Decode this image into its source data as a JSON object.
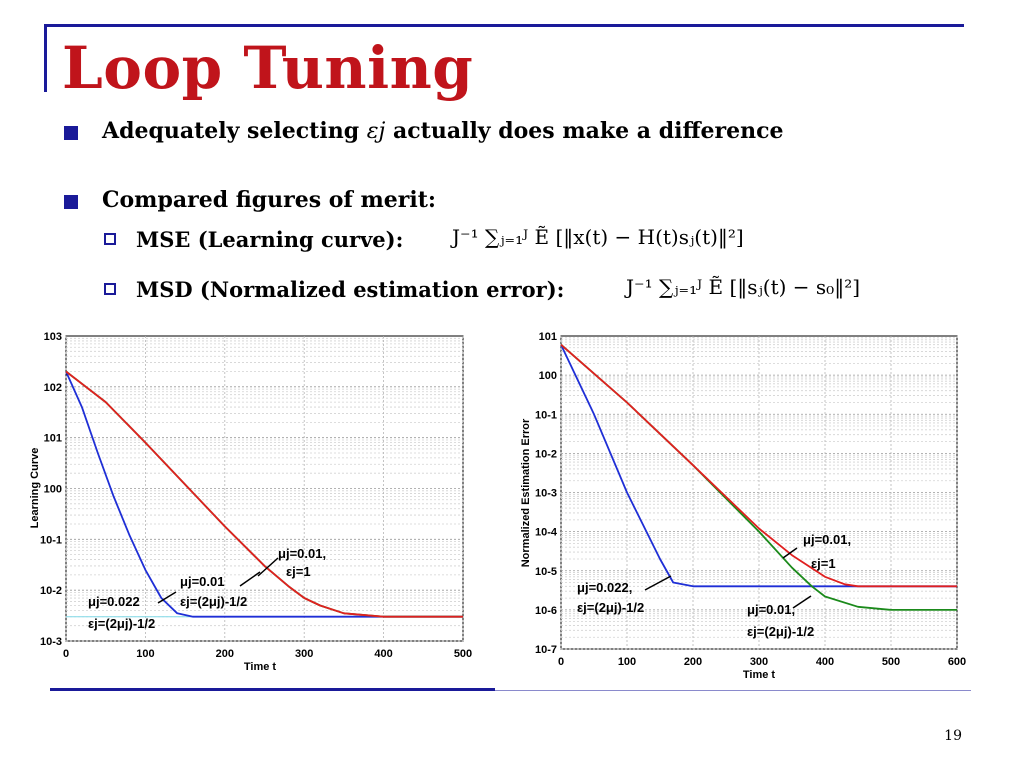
{
  "slide": {
    "title": "Loop Tuning",
    "page_number": "19",
    "bullets": [
      {
        "pre": "Adequately selecting ",
        "math": "εj",
        "post": " actually does make a difference"
      },
      {
        "text": "Compared figures of merit:"
      }
    ],
    "sub_bullets": [
      {
        "label": "MSE (Learning curve):",
        "formula": "J⁻¹ ∑ⱼ₌₁ᴶ Ẽ [‖x(t) − H(t)sⱼ(t)‖²]"
      },
      {
        "label": "MSD (Normalized estimation error):",
        "formula": "J⁻¹ ∑ⱼ₌₁ᴶ Ẽ [‖sⱼ(t) − s₀‖²]"
      }
    ],
    "colors": {
      "title": "#c0141b",
      "accent": "#1a1a99",
      "blue": "#1f2fd6",
      "red": "#e02020",
      "green": "#1b8a1b",
      "cyan": "#7fd8e6"
    }
  },
  "chart_data": [
    {
      "type": "line",
      "xlabel": "Time t",
      "ylabel": "Learning Curve",
      "xlim": [
        0,
        500
      ],
      "ylim": [
        0.001,
        1000
      ],
      "log_y": true,
      "grid": true,
      "x_ticks": [
        "0",
        "100",
        "200",
        "300",
        "400",
        "500"
      ],
      "y_ticks": [
        "10-3",
        "10-2",
        "10-1",
        "100",
        "101",
        "102",
        "103"
      ],
      "series": [
        {
          "color": "blue",
          "x": [
            0,
            20,
            40,
            60,
            80,
            100,
            120,
            140,
            160,
            180,
            200,
            300,
            400,
            500
          ],
          "y": [
            200,
            40,
            5,
            0.7,
            0.12,
            0.025,
            0.007,
            0.0035,
            0.003,
            0.003,
            0.003,
            0.003,
            0.003,
            0.003
          ]
        },
        {
          "color": "green",
          "x": [
            0,
            50,
            100,
            150,
            200,
            250,
            280,
            300,
            320,
            350,
            400,
            450,
            500
          ],
          "y": [
            200,
            50,
            8,
            1.2,
            0.18,
            0.03,
            0.012,
            0.007,
            0.005,
            0.0035,
            0.003,
            0.003,
            0.003
          ]
        },
        {
          "color": "red",
          "x": [
            0,
            50,
            100,
            150,
            200,
            250,
            280,
            300,
            320,
            350,
            400,
            450,
            500
          ],
          "y": [
            200,
            50,
            8,
            1.2,
            0.18,
            0.03,
            0.012,
            0.007,
            0.005,
            0.0035,
            0.003,
            0.003,
            0.003
          ]
        }
      ],
      "annotations": [
        "μj=0.01,",
        "εj=1",
        "μj=0.01",
        "εj=(2μj)-1/2",
        "μj=0.022",
        "εj=(2μj)-1/2"
      ]
    },
    {
      "type": "line",
      "xlabel": "Time t",
      "ylabel": "Normalized Estimation Error",
      "xlim": [
        0,
        600
      ],
      "ylim": [
        1e-07,
        10
      ],
      "log_y": true,
      "grid": true,
      "x_ticks": [
        "0",
        "100",
        "200",
        "300",
        "400",
        "500",
        "600"
      ],
      "y_ticks": [
        "10-7",
        "10-6",
        "10-5",
        "10-4",
        "10-3",
        "10-2",
        "10-1",
        "100",
        "101"
      ],
      "series": [
        {
          "color": "blue",
          "x": [
            0,
            50,
            100,
            150,
            170,
            200,
            300,
            400,
            500,
            600
          ],
          "y": [
            6,
            0.1,
            0.001,
            2e-05,
            5e-06,
            4e-06,
            4e-06,
            4e-06,
            4e-06,
            4e-06
          ]
        },
        {
          "color": "green",
          "x": [
            0,
            100,
            200,
            300,
            350,
            380,
            400,
            450,
            500,
            600
          ],
          "y": [
            6,
            0.2,
            0.005,
            0.0001,
            1.2e-05,
            4e-06,
            2.2e-06,
            1.2e-06,
            1e-06,
            1e-06
          ]
        },
        {
          "color": "red",
          "x": [
            0,
            100,
            200,
            300,
            350,
            400,
            430,
            450,
            500,
            600
          ],
          "y": [
            6,
            0.2,
            0.005,
            0.00012,
            2.5e-05,
            7e-06,
            4.5e-06,
            4e-06,
            4e-06,
            4e-06
          ]
        }
      ],
      "annotations": [
        "μj=0.01,",
        "εj=1",
        "μj=0.022,",
        "εj=(2μj)-1/2",
        "μj=0.01,",
        "εj=(2μj)-1/2"
      ]
    }
  ]
}
